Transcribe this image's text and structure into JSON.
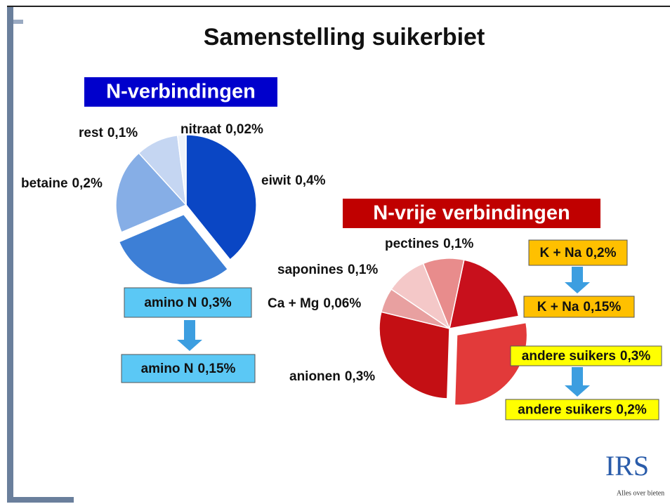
{
  "title": "Samenstelling suikerbiet",
  "chart_data": [
    {
      "type": "pie",
      "title": "N-verbindingen",
      "categories": [
        "eiwit",
        "amino N",
        "betaine",
        "rest",
        "nitraat"
      ],
      "values": [
        0.4,
        0.3,
        0.2,
        0.1,
        0.02
      ],
      "value_labels": [
        "0,4%",
        "0,3%",
        "0,2%",
        "0,1%",
        "0,02%"
      ],
      "colors": [
        "#0a46c4",
        "#3d7fd6",
        "#86aee6",
        "#c5d6f2",
        "#eef3fb"
      ],
      "changes": [
        {
          "category": 1,
          "value": 0.15,
          "value_label": "0,15%"
        }
      ]
    },
    {
      "type": "pie",
      "title": "N-vrije verbindingen",
      "categories": [
        "K + Na",
        "andere suikers",
        "anionen",
        "Ca + Mg",
        "saponines",
        "pectines"
      ],
      "values": [
        0.2,
        0.3,
        0.3,
        0.06,
        0.1,
        0.1
      ],
      "value_labels": [
        "0,2%",
        "0,3%",
        "0,3%",
        "0,06%",
        "0,1%",
        "0,1%"
      ],
      "colors": [
        "#c8101c",
        "#e23a3a",
        "#c40f14",
        "#e8a0a0",
        "#f4c8c8",
        "#e88c8c"
      ],
      "changes": [
        {
          "category": 0,
          "value": 0.15,
          "value_label": "0,15%"
        },
        {
          "category": 1,
          "value": 0.2,
          "value_label": "0,2%"
        }
      ]
    }
  ],
  "logo": {
    "text": "IRS",
    "tagline": "Alles over bieten"
  }
}
